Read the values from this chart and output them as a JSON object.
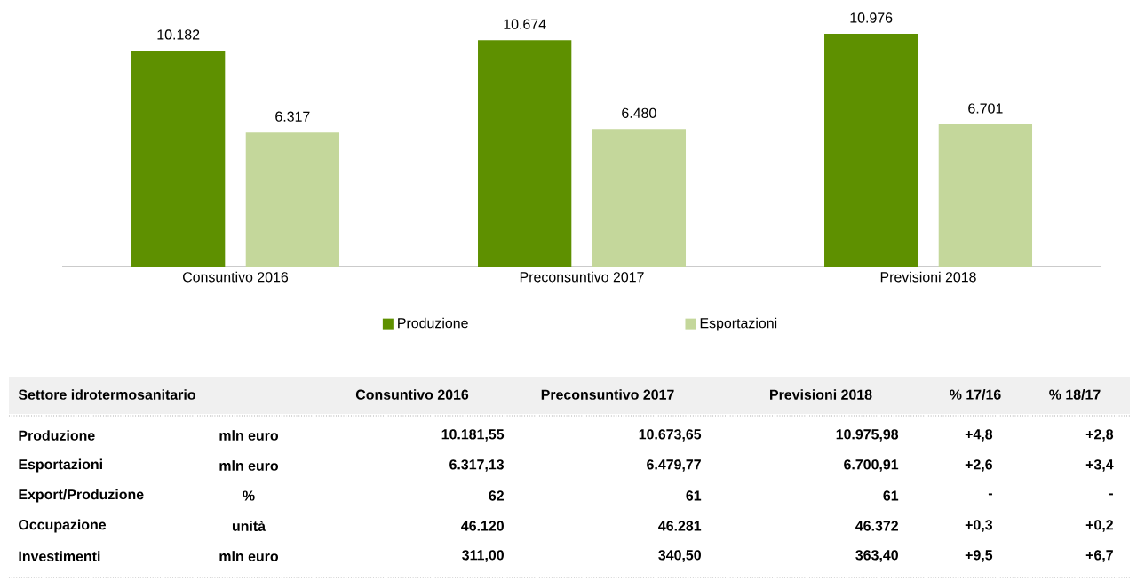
{
  "chart_data": {
    "type": "bar",
    "categories": [
      "Consuntivo 2016",
      "Preconsuntivo 2017",
      "Previsioni  2018"
    ],
    "series": [
      {
        "name": "Produzione",
        "color": "#5e9000",
        "values": [
          10182,
          10674,
          10976
        ],
        "value_labels": [
          "10.182",
          "10.674",
          "10.976"
        ]
      },
      {
        "name": "Esportazioni",
        "color": "#c4d79b",
        "values": [
          6317,
          6480,
          6701
        ],
        "value_labels": [
          "6.317",
          "6.480",
          "6.701"
        ]
      }
    ],
    "tick_labels": "x",
    "legend": "bottom",
    "annotations": [
      "Settore idrotermosanitario",
      "Consuntivo 2016",
      "Preconsuntivo 2017",
      "Previsioni  2018",
      "% 17/16",
      "% 18/17",
      "Produzione",
      "mln euro",
      "10.181,55",
      "10.673,65",
      "10.975,98",
      "+4,8",
      "+2,8",
      "Esportazioni",
      "mln euro",
      "6.317,13",
      "6.479,77",
      "6.700,91",
      "+2,6",
      "+3,4",
      "Export/Produzione",
      "%",
      "62",
      "61",
      "61",
      "-",
      "-",
      "Occupazione",
      "unità",
      "46.120",
      "46.281",
      "46.372",
      "+0,3",
      "+0,2",
      "Investimenti",
      "mln euro",
      "311,00",
      "340,50",
      "363,40",
      "+9,5",
      "+6,7"
    ]
  }
}
